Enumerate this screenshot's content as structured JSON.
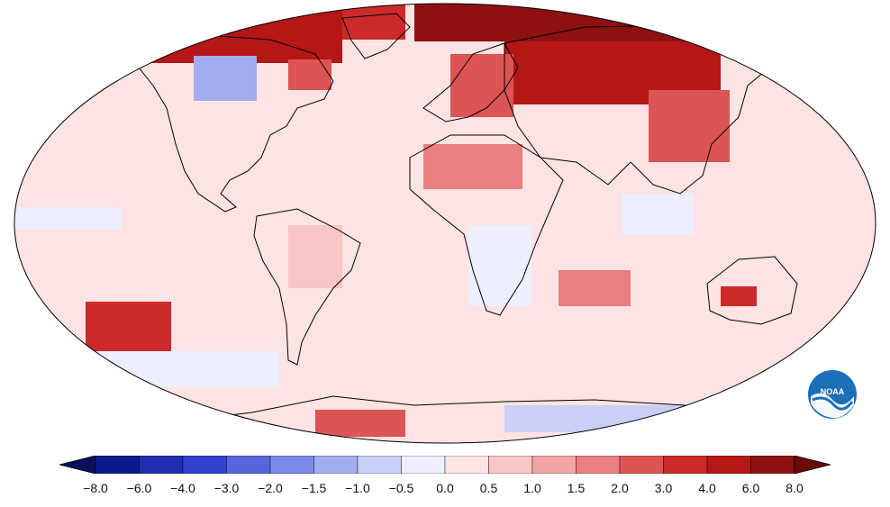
{
  "map": {
    "projection": "robinson",
    "ocean_fill": "#fde3e3",
    "border_color": "#000000",
    "variable": "temperature anomaly",
    "regions": [
      {
        "name": "arctic-north-america",
        "anomaly": 4.0
      },
      {
        "name": "greenland",
        "anomaly": 3.0
      },
      {
        "name": "arctic-eurasia",
        "anomaly": 6.0
      },
      {
        "name": "siberia",
        "anomaly": 4.0
      },
      {
        "name": "europe",
        "anomaly": 2.0
      },
      {
        "name": "hudson-bay",
        "anomaly": -1.5
      },
      {
        "name": "canada-east",
        "anomaly": 2.0
      },
      {
        "name": "north-africa",
        "anomaly": 1.5
      },
      {
        "name": "east-asia",
        "anomaly": 2.0
      },
      {
        "name": "australia-interior",
        "anomaly": 3.0
      },
      {
        "name": "south-pacific-warm-spot",
        "anomaly": 3.0
      },
      {
        "name": "south-pacific-cool-band",
        "anomaly": -0.5
      },
      {
        "name": "equatorial-pacific",
        "anomaly": -0.5
      },
      {
        "name": "southern-ocean-cool",
        "anomaly": -1.0
      },
      {
        "name": "antarctica-peninsula",
        "anomaly": 2.0
      },
      {
        "name": "indian-ocean-south",
        "anomaly": 1.5
      },
      {
        "name": "south-america",
        "anomaly": 0.5
      },
      {
        "name": "africa-south",
        "anomaly": -0.5
      }
    ]
  },
  "colorbar": {
    "ticks": [
      "−8.0",
      "−6.0",
      "−4.0",
      "−3.0",
      "−2.0",
      "−1.5",
      "−1.0",
      "−0.5",
      "0.0",
      "0.5",
      "1.0",
      "1.5",
      "2.0",
      "3.0",
      "4.0",
      "6.0",
      "8.0"
    ],
    "colors": [
      "#0d1a8c",
      "#1f2db3",
      "#3140d0",
      "#5566dd",
      "#7a88e6",
      "#a2acee",
      "#c9cff6",
      "#ecefff",
      "#fde3e3",
      "#f9c5c5",
      "#f3a5a5",
      "#ea7f7f",
      "#dc5454",
      "#cc2a2a",
      "#b51616",
      "#8e1010"
    ],
    "under_color": "#08105e",
    "over_color": "#6b0a0a"
  },
  "logo": {
    "text": "NOAA",
    "color": "#1b6fb8"
  }
}
